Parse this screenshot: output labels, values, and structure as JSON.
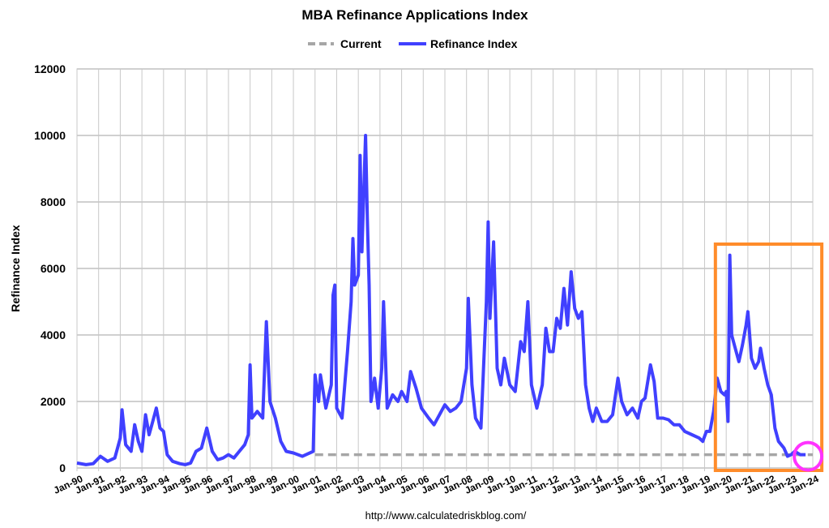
{
  "chart_data": {
    "type": "line",
    "title": "MBA Refinance Applications Index",
    "ylabel": "Refinance Index",
    "xlabel": "",
    "source": "http://www.calculatedriskblog.com/",
    "ylim": [
      0,
      12000
    ],
    "xlim": [
      "1990-01",
      "2024-01"
    ],
    "yticks": [
      0,
      2000,
      4000,
      6000,
      8000,
      10000,
      12000
    ],
    "xticks": [
      "Jan-90",
      "Jan-91",
      "Jan-92",
      "Jan-93",
      "Jan-94",
      "Jan-95",
      "Jan-96",
      "Jan-97",
      "Jan-98",
      "Jan-99",
      "Jan-00",
      "Jan-01",
      "Jan-02",
      "Jan-03",
      "Jan-04",
      "Jan-05",
      "Jan-06",
      "Jan-07",
      "Jan-08",
      "Jan-09",
      "Jan-10",
      "Jan-11",
      "Jan-12",
      "Jan-13",
      "Jan-14",
      "Jan-15",
      "Jan-16",
      "Jan-17",
      "Jan-18",
      "Jan-19",
      "Jan-20",
      "Jan-21",
      "Jan-22",
      "Jan-23",
      "Jan-24"
    ],
    "grid": true,
    "legend_placement": "top",
    "series": [
      {
        "name": "Current",
        "color": "#a6a6a6",
        "style": "dashed",
        "points": [
          [
            "2001-01",
            400
          ],
          [
            "2024-01",
            400
          ]
        ]
      },
      {
        "name": "Refinance Index",
        "color": "#4040ff",
        "style": "solid",
        "points": [
          [
            "1990-01",
            150
          ],
          [
            "1990-06",
            100
          ],
          [
            "1990-10",
            130
          ],
          [
            "1991-02",
            350
          ],
          [
            "1991-06",
            200
          ],
          [
            "1991-10",
            300
          ],
          [
            "1992-01",
            900
          ],
          [
            "1992-02",
            1750
          ],
          [
            "1992-04",
            700
          ],
          [
            "1992-07",
            500
          ],
          [
            "1992-09",
            1300
          ],
          [
            "1992-11",
            800
          ],
          [
            "1993-01",
            500
          ],
          [
            "1993-03",
            1600
          ],
          [
            "1993-05",
            1000
          ],
          [
            "1993-07",
            1400
          ],
          [
            "1993-09",
            1800
          ],
          [
            "1993-11",
            1200
          ],
          [
            "1994-01",
            1100
          ],
          [
            "1994-03",
            400
          ],
          [
            "1994-06",
            200
          ],
          [
            "1994-10",
            130
          ],
          [
            "1995-01",
            100
          ],
          [
            "1995-04",
            150
          ],
          [
            "1995-07",
            500
          ],
          [
            "1995-10",
            600
          ],
          [
            "1996-01",
            1200
          ],
          [
            "1996-04",
            500
          ],
          [
            "1996-07",
            250
          ],
          [
            "1996-10",
            300
          ],
          [
            "1997-01",
            400
          ],
          [
            "1997-04",
            300
          ],
          [
            "1997-07",
            500
          ],
          [
            "1997-10",
            700
          ],
          [
            "1997-12",
            1000
          ],
          [
            "1998-01",
            3100
          ],
          [
            "1998-02",
            1500
          ],
          [
            "1998-05",
            1700
          ],
          [
            "1998-08",
            1500
          ],
          [
            "1998-10",
            4400
          ],
          [
            "1998-12",
            2000
          ],
          [
            "1999-03",
            1500
          ],
          [
            "1999-06",
            800
          ],
          [
            "1999-09",
            500
          ],
          [
            "2000-01",
            450
          ],
          [
            "2000-06",
            350
          ],
          [
            "2000-12",
            500
          ],
          [
            "2001-01",
            2800
          ],
          [
            "2001-03",
            2000
          ],
          [
            "2001-04",
            2800
          ],
          [
            "2001-07",
            1800
          ],
          [
            "2001-10",
            2500
          ],
          [
            "2001-11",
            5200
          ],
          [
            "2001-12",
            5500
          ],
          [
            "2002-01",
            1800
          ],
          [
            "2002-04",
            1500
          ],
          [
            "2002-07",
            3500
          ],
          [
            "2002-09",
            5000
          ],
          [
            "2002-10",
            6900
          ],
          [
            "2002-11",
            5500
          ],
          [
            "2003-01",
            5800
          ],
          [
            "2003-02",
            9400
          ],
          [
            "2003-03",
            6500
          ],
          [
            "2003-05",
            10000
          ],
          [
            "2003-06",
            7500
          ],
          [
            "2003-07",
            5500
          ],
          [
            "2003-08",
            2000
          ],
          [
            "2003-10",
            2700
          ],
          [
            "2003-12",
            1800
          ],
          [
            "2004-02",
            3000
          ],
          [
            "2004-03",
            5000
          ],
          [
            "2004-05",
            1800
          ],
          [
            "2004-08",
            2200
          ],
          [
            "2004-11",
            2000
          ],
          [
            "2005-01",
            2300
          ],
          [
            "2005-04",
            2000
          ],
          [
            "2005-06",
            2900
          ],
          [
            "2005-09",
            2400
          ],
          [
            "2005-12",
            1800
          ],
          [
            "2006-04",
            1500
          ],
          [
            "2006-07",
            1300
          ],
          [
            "2006-10",
            1600
          ],
          [
            "2007-01",
            1900
          ],
          [
            "2007-04",
            1700
          ],
          [
            "2007-07",
            1800
          ],
          [
            "2007-10",
            2000
          ],
          [
            "2008-01",
            3000
          ],
          [
            "2008-02",
            5100
          ],
          [
            "2008-04",
            2500
          ],
          [
            "2008-06",
            1500
          ],
          [
            "2008-09",
            1200
          ],
          [
            "2008-12",
            5000
          ],
          [
            "2009-01",
            7400
          ],
          [
            "2009-02",
            4500
          ],
          [
            "2009-04",
            6800
          ],
          [
            "2009-06",
            3000
          ],
          [
            "2009-08",
            2500
          ],
          [
            "2009-10",
            3300
          ],
          [
            "2010-01",
            2500
          ],
          [
            "2010-04",
            2300
          ],
          [
            "2010-07",
            3800
          ],
          [
            "2010-09",
            3500
          ],
          [
            "2010-11",
            5000
          ],
          [
            "2011-01",
            2500
          ],
          [
            "2011-04",
            1800
          ],
          [
            "2011-07",
            2500
          ],
          [
            "2011-09",
            4200
          ],
          [
            "2011-11",
            3500
          ],
          [
            "2012-01",
            3500
          ],
          [
            "2012-03",
            4500
          ],
          [
            "2012-05",
            4200
          ],
          [
            "2012-07",
            5400
          ],
          [
            "2012-09",
            4300
          ],
          [
            "2012-11",
            5900
          ],
          [
            "2013-01",
            4800
          ],
          [
            "2013-03",
            4500
          ],
          [
            "2013-05",
            4700
          ],
          [
            "2013-07",
            2500
          ],
          [
            "2013-09",
            1800
          ],
          [
            "2013-11",
            1400
          ],
          [
            "2014-01",
            1800
          ],
          [
            "2014-04",
            1400
          ],
          [
            "2014-07",
            1400
          ],
          [
            "2014-10",
            1600
          ],
          [
            "2015-01",
            2700
          ],
          [
            "2015-03",
            2000
          ],
          [
            "2015-06",
            1600
          ],
          [
            "2015-09",
            1800
          ],
          [
            "2015-12",
            1500
          ],
          [
            "2016-02",
            2000
          ],
          [
            "2016-04",
            2100
          ],
          [
            "2016-07",
            3100
          ],
          [
            "2016-09",
            2600
          ],
          [
            "2016-11",
            1500
          ],
          [
            "2017-02",
            1500
          ],
          [
            "2017-05",
            1450
          ],
          [
            "2017-08",
            1300
          ],
          [
            "2017-11",
            1300
          ],
          [
            "2018-02",
            1100
          ],
          [
            "2018-06",
            1000
          ],
          [
            "2018-10",
            900
          ],
          [
            "2018-12",
            800
          ],
          [
            "2019-02",
            1100
          ],
          [
            "2019-04",
            1100
          ],
          [
            "2019-06",
            1700
          ],
          [
            "2019-08",
            2700
          ],
          [
            "2019-10",
            2300
          ],
          [
            "2019-12",
            2200
          ],
          [
            "2020-01",
            2300
          ],
          [
            "2020-02",
            1400
          ],
          [
            "2020-03",
            6400
          ],
          [
            "2020-04",
            4000
          ],
          [
            "2020-06",
            3600
          ],
          [
            "2020-08",
            3200
          ],
          [
            "2020-10",
            3700
          ],
          [
            "2020-12",
            4300
          ],
          [
            "2021-01",
            4700
          ],
          [
            "2021-03",
            3300
          ],
          [
            "2021-05",
            3000
          ],
          [
            "2021-07",
            3200
          ],
          [
            "2021-08",
            3600
          ],
          [
            "2021-10",
            3000
          ],
          [
            "2021-12",
            2500
          ],
          [
            "2022-02",
            2200
          ],
          [
            "2022-04",
            1200
          ],
          [
            "2022-06",
            800
          ],
          [
            "2022-09",
            600
          ],
          [
            "2022-11",
            350
          ],
          [
            "2023-01",
            400
          ],
          [
            "2023-03",
            500
          ],
          [
            "2023-06",
            400
          ],
          [
            "2023-09",
            400
          ]
        ]
      }
    ],
    "annotations": [
      {
        "type": "rectangle",
        "color": "#ff8c2a",
        "from": "2019-07",
        "to": "2024-06"
      },
      {
        "type": "circle",
        "color": "#ff33ff",
        "at": "2023-09"
      }
    ]
  }
}
